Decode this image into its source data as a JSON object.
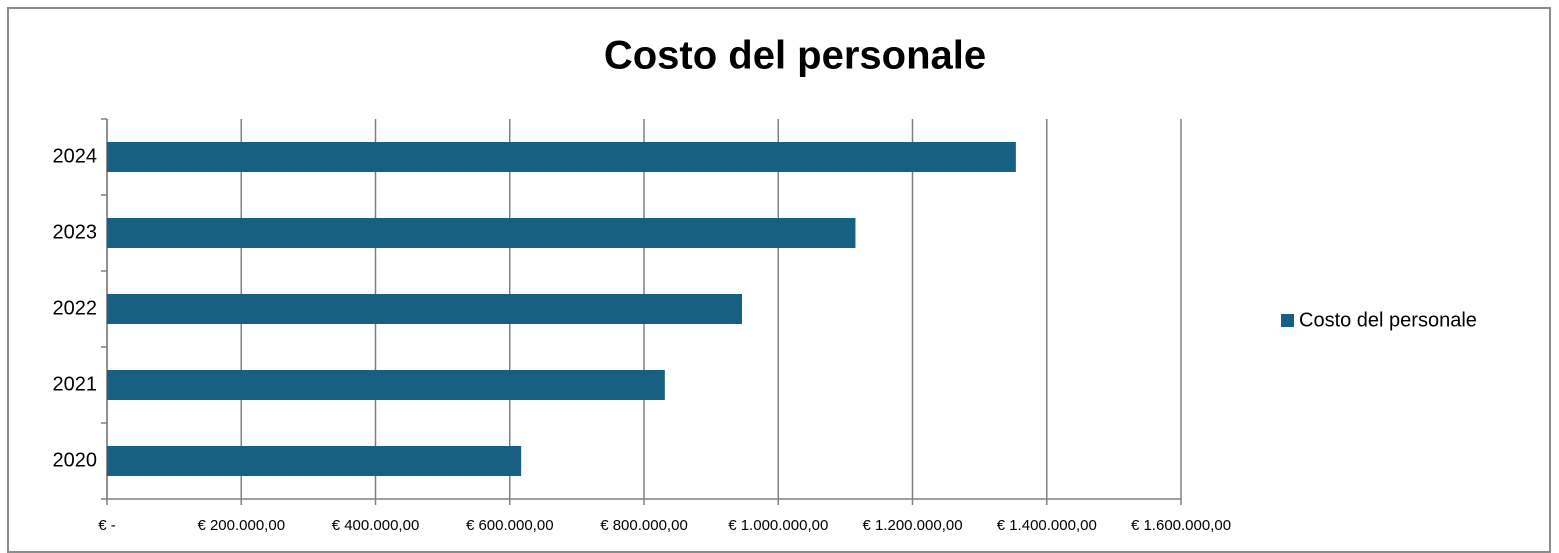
{
  "chart_data": {
    "type": "bar",
    "orientation": "horizontal",
    "title": "Costo del personale",
    "categories": [
      "2020",
      "2021",
      "2022",
      "2023",
      "2024"
    ],
    "series": [
      {
        "name": "Costo del personale",
        "color": "#176084",
        "values": [
          617000,
          831000,
          946000,
          1115000,
          1354000
        ]
      }
    ],
    "xlim": [
      0,
      1600000
    ],
    "xticks": [
      {
        "value": 0,
        "label": "€ -"
      },
      {
        "value": 200000,
        "label": "€ 200.000,00"
      },
      {
        "value": 400000,
        "label": "€ 400.000,00"
      },
      {
        "value": 600000,
        "label": "€ 600.000,00"
      },
      {
        "value": 800000,
        "label": "€ 800.000,00"
      },
      {
        "value": 1000000,
        "label": "€ 1.000.000,00"
      },
      {
        "value": 1200000,
        "label": "€ 1.200.000,00"
      },
      {
        "value": 1400000,
        "label": "€ 1.400.000,00"
      },
      {
        "value": 1600000,
        "label": "€ 1.600.000,00"
      }
    ],
    "grid": true,
    "legend": "right"
  }
}
